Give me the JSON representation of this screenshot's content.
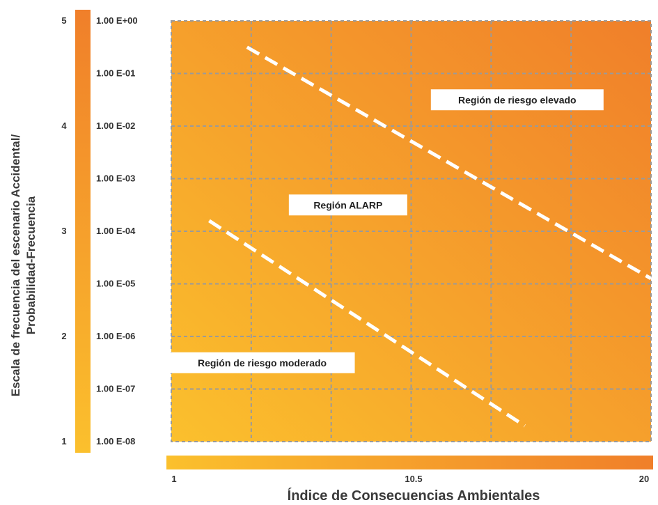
{
  "chart_data": {
    "type": "area",
    "title": "",
    "xlabel": "Índice de Consecuencias Ambientales",
    "ylabel_lines": [
      "Escala de frecuencia del escenario Accidental/",
      "Probabilidad-Frecuencia"
    ],
    "x_ticks": [
      "1",
      "10.5",
      "20"
    ],
    "xlim": [
      1,
      20
    ],
    "y_scale_ticks": [
      "1",
      "2",
      "3",
      "4",
      "5"
    ],
    "y_frequency_ticks": [
      "1.00 E-08",
      "1.00 E-07",
      "1.00 E-06",
      "1.00 E-05",
      "1.00 E-04",
      "1.00 E-03",
      "1.00 E-02",
      "1.00 E-01",
      "1.00 E+00"
    ],
    "ylim_log10": [
      -8,
      0
    ],
    "log_scale_y": true,
    "grid": true,
    "grid_style": "dashed",
    "boundaries": [
      {
        "id": "upper",
        "style": "dashed-white",
        "points": [
          {
            "x": 4.0,
            "y": -0.5
          },
          {
            "x": 20.0,
            "y": -4.9
          }
        ]
      },
      {
        "id": "lower",
        "style": "dashed-white",
        "points": [
          {
            "x": 2.5,
            "y": -3.8
          },
          {
            "x": 15.0,
            "y": -7.7
          }
        ]
      }
    ],
    "regions": [
      {
        "label": "Región de riesgo elevado",
        "x": 14.7,
        "y": -1.5
      },
      {
        "label": "Región ALARP",
        "x": 8.0,
        "y": -3.5
      },
      {
        "label": "Región de riesgo moderado",
        "x": 4.6,
        "y": -6.5
      }
    ],
    "colors": {
      "gradient_low": "#fbc02d",
      "gradient_high": "#f07f2a",
      "grid": "#9a9a9a",
      "boundary": "#ffffff",
      "label_box": "#ffffff"
    }
  }
}
